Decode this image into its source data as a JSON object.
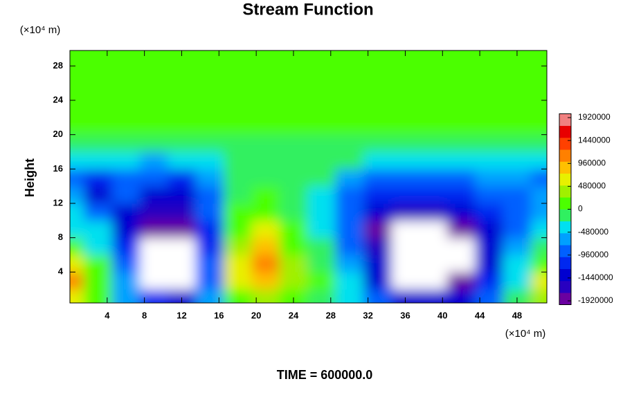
{
  "chart_data": {
    "type": "contour",
    "title": "Stream Function",
    "y_label": "Height",
    "y_unit": "(×10⁴ m)",
    "x_unit": "(×10⁴ m)",
    "footer": "TIME = 600000.0",
    "xlim": [
      0,
      51.2
    ],
    "ylim": [
      0.4,
      29.8
    ],
    "xticks": [
      4,
      8,
      12,
      16,
      20,
      24,
      28,
      32,
      36,
      40,
      44,
      48
    ],
    "yticks": [
      4,
      8,
      12,
      16,
      20,
      24,
      28
    ],
    "x": [
      0,
      3,
      6,
      9,
      12,
      15,
      18,
      21,
      24,
      27,
      30,
      33,
      36,
      39,
      42,
      45,
      48,
      51
    ],
    "y": [
      1,
      3,
      5,
      7,
      9,
      11,
      13,
      15,
      17,
      19,
      21,
      23,
      25,
      27,
      29
    ],
    "z": [
      [
        500000,
        0,
        -600000,
        -1200000,
        -1300000,
        -600000,
        200000,
        400000,
        0,
        -100000,
        -300000,
        -900000,
        -1400000,
        -1500000,
        -1400000,
        -900000,
        -200000,
        300000
      ],
      [
        1100000,
        200000,
        -700000,
        -2200000,
        -2200000,
        -900000,
        500000,
        900000,
        300000,
        0,
        -500000,
        -1300000,
        -2200000,
        -2300000,
        -1900000,
        -1200000,
        -300000,
        600000
      ],
      [
        700000,
        0,
        -900000,
        -2400000,
        -2300000,
        -1000000,
        600000,
        1100000,
        300000,
        -100000,
        -700000,
        -1500000,
        -2400000,
        -2500000,
        -2200000,
        -1300000,
        -500000,
        200000
      ],
      [
        100000,
        -300000,
        -1200000,
        -2300000,
        -2200000,
        -1100000,
        400000,
        800000,
        200000,
        -200000,
        -800000,
        -1700000,
        -2400000,
        -2500000,
        -2100000,
        -1400000,
        -700000,
        -200000
      ],
      [
        -300000,
        -500000,
        -1400000,
        -2000000,
        -1900000,
        -1100000,
        200000,
        500000,
        0,
        -300000,
        -1000000,
        -1800000,
        -2100000,
        -2100000,
        -1800000,
        -1300000,
        -800000,
        -400000
      ],
      [
        -500000,
        -800000,
        -1300000,
        -1600000,
        -1600000,
        -1000000,
        0,
        200000,
        -100000,
        -400000,
        -900000,
        -1500000,
        -1700000,
        -1700000,
        -1500000,
        -1100000,
        -800000,
        -600000
      ],
      [
        -700000,
        -1300000,
        -1000000,
        -1300000,
        -1400000,
        -900000,
        -200000,
        0,
        -100000,
        -500000,
        -800000,
        -1100000,
        -1200000,
        -1200000,
        -1100000,
        -900000,
        -800000,
        -700000
      ],
      [
        -800000,
        -1100000,
        -900000,
        -1000000,
        -1100000,
        -700000,
        -200000,
        -100000,
        -100000,
        -200000,
        -600000,
        -800000,
        -800000,
        -800000,
        -800000,
        -700000,
        -700000,
        -900000
      ],
      [
        -500000,
        -500000,
        -500000,
        -600000,
        -500000,
        -300000,
        -150000,
        -100000,
        -100000,
        -100000,
        -200000,
        -300000,
        -300000,
        -300000,
        -300000,
        -300000,
        -300000,
        -500000
      ],
      [
        -200000,
        -100000,
        -100000,
        -100000,
        -100000,
        -100000,
        -100000,
        -100000,
        -100000,
        -100000,
        -100000,
        -100000,
        -100000,
        -100000,
        -100000,
        -100000,
        -100000,
        -200000
      ],
      [
        0,
        0,
        0,
        0,
        0,
        0,
        0,
        0,
        0,
        0,
        0,
        0,
        0,
        0,
        0,
        0,
        0,
        0
      ],
      [
        0,
        0,
        0,
        0,
        0,
        0,
        0,
        0,
        0,
        0,
        0,
        0,
        0,
        0,
        0,
        0,
        0,
        0
      ],
      [
        0,
        0,
        0,
        0,
        0,
        0,
        0,
        0,
        0,
        0,
        0,
        0,
        0,
        0,
        0,
        0,
        0,
        0
      ],
      [
        0,
        0,
        0,
        0,
        0,
        0,
        0,
        0,
        0,
        0,
        0,
        0,
        0,
        0,
        0,
        0,
        0,
        0
      ],
      [
        0,
        0,
        0,
        0,
        0,
        0,
        0,
        0,
        0,
        0,
        0,
        0,
        0,
        0,
        0,
        0,
        0,
        0
      ]
    ],
    "clim": [
      -2000000,
      2000000
    ],
    "colorbar_ticks": [
      1920000,
      1440000,
      960000,
      480000,
      0,
      -480000,
      -960000,
      -1440000,
      -1920000
    ],
    "colors": [
      "#6a00a0",
      "#2800c0",
      "#0000d0",
      "#0028f0",
      "#0060ff",
      "#00a0ff",
      "#00e0f0",
      "#30f060",
      "#4cff00",
      "#a0f000",
      "#e8f000",
      "#ffc000",
      "#ff8000",
      "#ff4000",
      "#e80000",
      "#f08080"
    ],
    "out_of_range_color": "#ffffff"
  }
}
